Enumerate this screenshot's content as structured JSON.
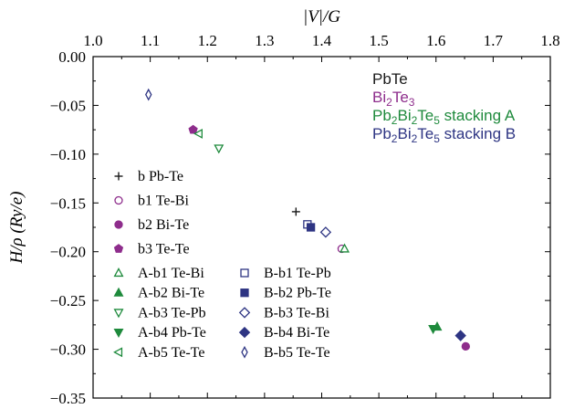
{
  "chart_data": {
    "type": "scatter",
    "xlabel": "|V|/G",
    "ylabel": "H/ρ (Ry/e)",
    "xlim": [
      1.0,
      1.8
    ],
    "ylim": [
      -0.35,
      0.0
    ],
    "x_ticks": [
      "1.0",
      "1.1",
      "1.2",
      "1.3",
      "1.4",
      "1.5",
      "1.6",
      "1.7",
      "1.8"
    ],
    "y_ticks": [
      "0.00",
      "−0.05",
      "−0.10",
      "−0.15",
      "−0.20",
      "−0.25",
      "−0.30",
      "−0.35"
    ],
    "x_axis_position": "top",
    "grid": false,
    "colors": {
      "PbTe": "#1a1a1a",
      "Bi2Te3": "#8e2d8c",
      "stackingA": "#1e8a3c",
      "stackingB": "#2e3583"
    },
    "systems": [
      {
        "key": "PbTe",
        "base": "PbTe",
        "sub": "",
        "rest": ""
      },
      {
        "key": "Bi2Te3",
        "base": "Bi",
        "sub": "2",
        "mid": "Te",
        "sub2": "3",
        "rest": ""
      },
      {
        "key": "stackingA",
        "base": "Pb",
        "sub": "2",
        "mid": "Bi",
        "sub2": "2",
        "mid2": "Te",
        "sub3": "5",
        "rest": " stacking A"
      },
      {
        "key": "stackingB",
        "base": "Pb",
        "sub": "2",
        "mid": "Bi",
        "sub2": "2",
        "mid2": "Te",
        "sub3": "5",
        "rest": " stacking B"
      }
    ],
    "series": [
      {
        "name": "b Pb-Te",
        "marker": "plus",
        "color": "PbTe",
        "points": [
          [
            1.355,
            -0.159
          ]
        ]
      },
      {
        "name": "b1 Te-Bi",
        "marker": "circle-open",
        "color": "Bi2Te3",
        "points": [
          [
            1.435,
            -0.197
          ]
        ]
      },
      {
        "name": "b2 Bi-Te",
        "marker": "circle-filled",
        "color": "Bi2Te3",
        "points": [
          [
            1.652,
            -0.297
          ]
        ]
      },
      {
        "name": "b3 Te-Te",
        "marker": "pentagon-filled",
        "color": "Bi2Te3",
        "points": [
          [
            1.175,
            -0.075
          ]
        ]
      },
      {
        "name": "A-b1 Te-Bi",
        "marker": "triangle-up-open",
        "color": "stackingA",
        "points": [
          [
            1.44,
            -0.197
          ]
        ]
      },
      {
        "name": "A-b2 Bi-Te",
        "marker": "triangle-up-filled",
        "color": "stackingA",
        "points": [
          [
            1.602,
            -0.277
          ]
        ]
      },
      {
        "name": "A-b3 Te-Pb",
        "marker": "triangle-down-open",
        "color": "stackingA",
        "points": [
          [
            1.22,
            -0.094
          ]
        ]
      },
      {
        "name": "A-b4 Pb-Te",
        "marker": "triangle-down-filled",
        "color": "stackingA",
        "points": [
          [
            1.595,
            -0.279
          ]
        ]
      },
      {
        "name": "A-b5 Te-Te",
        "marker": "triangle-left-open",
        "color": "stackingA",
        "points": [
          [
            1.185,
            -0.079
          ]
        ]
      },
      {
        "name": "B-b1 Te-Pb",
        "marker": "square-open",
        "color": "stackingB",
        "points": [
          [
            1.375,
            -0.172
          ]
        ]
      },
      {
        "name": "B-b2 Pb-Te",
        "marker": "square-filled",
        "color": "stackingB",
        "points": [
          [
            1.381,
            -0.175
          ]
        ]
      },
      {
        "name": "B-b3 Te-Bi",
        "marker": "diamond-open",
        "color": "stackingB",
        "points": [
          [
            1.407,
            -0.18
          ]
        ]
      },
      {
        "name": "B-b4 Bi-Te",
        "marker": "diamond-filled",
        "color": "stackingB",
        "points": [
          [
            1.643,
            -0.286
          ]
        ]
      },
      {
        "name": "B-b5 Te-Te",
        "marker": "thin-diamond-open",
        "color": "stackingB",
        "points": [
          [
            1.097,
            -0.039
          ]
        ]
      }
    ]
  }
}
